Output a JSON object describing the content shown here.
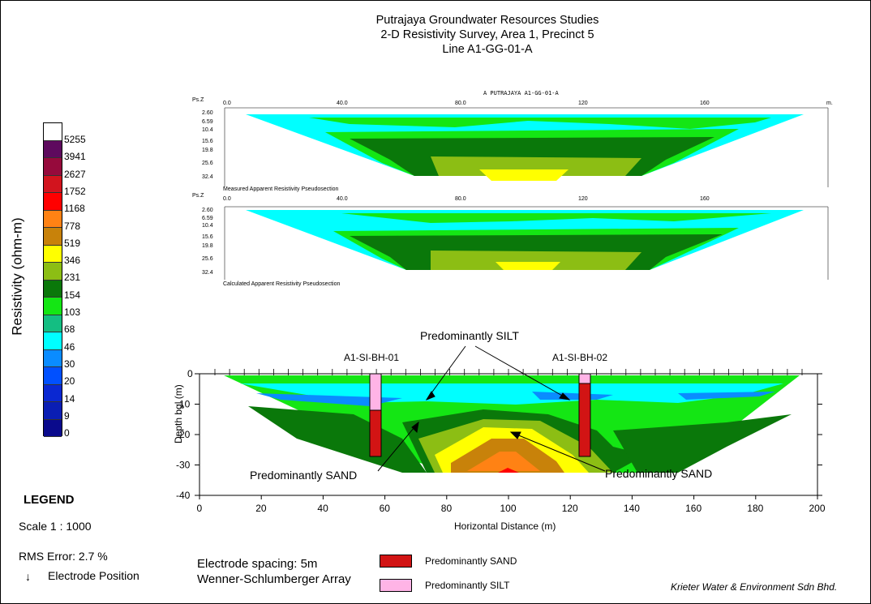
{
  "title": {
    "line1": "Putrajaya Groundwater Resources Studies",
    "line2": "2-D Resistivity Survey, Area 1, Precinct 5",
    "line3": "Line A1-GG-01-A"
  },
  "scale_bar": {
    "title": "Resistivity (ohm-m)",
    "labels": [
      "5255",
      "3941",
      "2627",
      "1752",
      "1168",
      "778",
      "519",
      "346",
      "231",
      "154",
      "103",
      "68",
      "46",
      "30",
      "20",
      "14",
      "9",
      "0"
    ],
    "colors": [
      "#ffffff",
      "#5e0a5e",
      "#960a3c",
      "#d2141e",
      "#ff0000",
      "#ff8214",
      "#c8820a",
      "#ffff00",
      "#8cbe14",
      "#0a780a",
      "#14e614",
      "#14be82",
      "#00ffff",
      "#0a8cff",
      "#0050ff",
      "#0a28d2",
      "#0a1eb4",
      "#0a0a8c"
    ]
  },
  "legend": {
    "heading": "LEGEND",
    "scale": "Scale 1 : 1000",
    "rms": "RMS Error: 2.7 %",
    "electrode_arrow": "↓",
    "electrode": "Electrode Position"
  },
  "survey": {
    "spacing": "Electrode spacing: 5m",
    "array": "Wenner-Schlumberger Array"
  },
  "key": {
    "sand": "Predominantly SAND",
    "silt": "Predominantly SILT"
  },
  "credit": "Krieter Water & Environment Sdn Bhd.",
  "pseudo_measured": {
    "header": "A PUTRAJAYA A1-GG-01-A",
    "ps_label": "Ps.Z",
    "unit": "m.",
    "x_ticks": [
      "0.0",
      "40.0",
      "80.0",
      "120",
      "160"
    ],
    "depth_ticks": [
      "2.60",
      "6.59",
      "10.4",
      "15.6",
      "19.8",
      "25.6",
      "32.4"
    ],
    "caption": "Measured Apparent Resistivity Pseudosection"
  },
  "pseudo_calculated": {
    "ps_label": "Ps.Z",
    "x_ticks": [
      "0.0",
      "40.0",
      "80.0",
      "120",
      "160"
    ],
    "depth_ticks": [
      "2.60",
      "6.59",
      "10.4",
      "15.6",
      "19.8",
      "25.6",
      "32.4"
    ],
    "caption": "Calculated Apparent Resistivity Pseudosection"
  },
  "inverted_section": {
    "x_ticks": [
      "0",
      "20",
      "40",
      "60",
      "80",
      "100",
      "120",
      "140",
      "160",
      "180",
      "200"
    ],
    "y_ticks": [
      "0",
      "-10",
      "-20",
      "-30",
      "-40"
    ],
    "xlabel": "Horizontal Distance (m)",
    "ylabel": "Depth bgl (m)",
    "borehole_1": "A1-SI-BH-01",
    "borehole_2": "A1-SI-BH-02",
    "annot_silt": "Predominantly SILT",
    "annot_sand_left": "Predominantly SAND",
    "annot_sand_right": "Predominantly SAND"
  }
}
